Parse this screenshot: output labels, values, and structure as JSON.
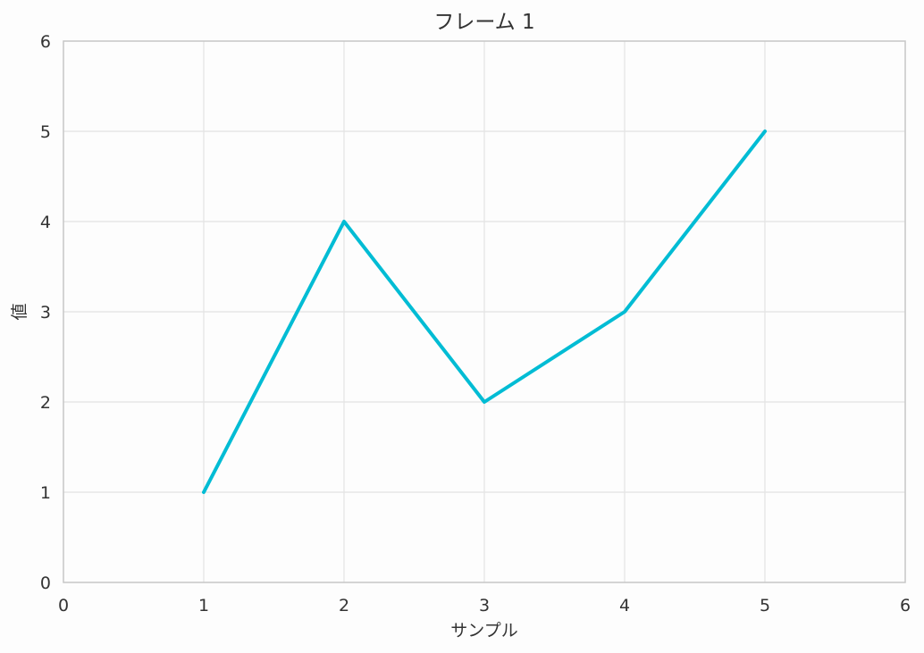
{
  "chart_data": {
    "type": "line",
    "title": "フレーム 1",
    "xlabel": "サンプル",
    "ylabel": "値",
    "xlim": [
      0,
      6
    ],
    "ylim": [
      0,
      6
    ],
    "xticks": [
      "0",
      "1",
      "2",
      "3",
      "4",
      "5",
      "6"
    ],
    "yticks": [
      "0",
      "1",
      "2",
      "3",
      "4",
      "5",
      "6"
    ],
    "grid": true,
    "series": [
      {
        "x": [
          1,
          2,
          3,
          4,
          5
        ],
        "y": [
          1,
          4,
          2,
          3,
          5
        ],
        "color": "#00bcd4"
      }
    ]
  }
}
